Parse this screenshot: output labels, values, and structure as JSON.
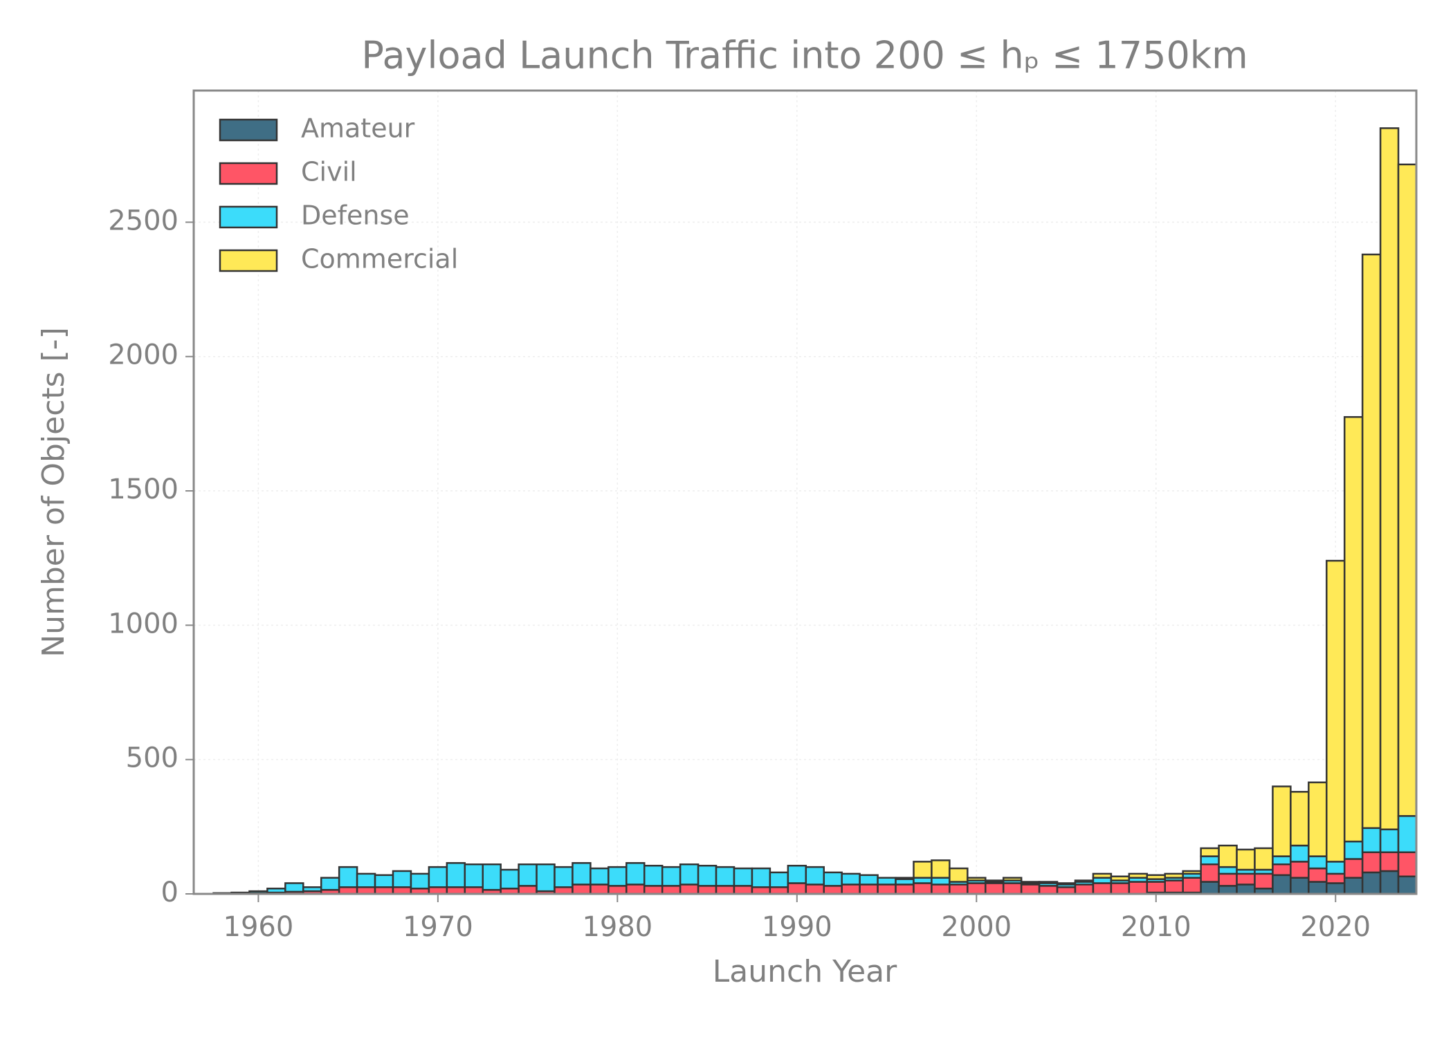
{
  "chart_data": {
    "type": "stacked_histogram",
    "title": "Payload Launch Traffic into 200 ≤ hₚ ≤ 1750km",
    "xlabel": "Launch Year",
    "ylabel": "Number of Objects [-]",
    "bins": [
      1957.5,
      1958.5,
      1959.5,
      1960.5,
      1961.5,
      1962.5,
      1963.5,
      1964.5,
      1965.5,
      1966.5,
      1967.5,
      1968.5,
      1969.5,
      1970.5,
      1971.5,
      1972.5,
      1973.5,
      1974.5,
      1975.5,
      1976.5,
      1977.5,
      1978.5,
      1979.5,
      1980.5,
      1981.5,
      1982.5,
      1983.5,
      1984.5,
      1985.5,
      1986.5,
      1987.5,
      1988.5,
      1989.5,
      1990.5,
      1991.5,
      1992.5,
      1993.5,
      1994.5,
      1995.5,
      1996.5,
      1997.5,
      1998.5,
      1999.5,
      2000.5,
      2001.5,
      2002.5,
      2003.5,
      2004.5,
      2005.5,
      2006.5,
      2007.5,
      2008.5,
      2009.5,
      2010.5,
      2011.5,
      2012.5,
      2013.5,
      2014.5,
      2015.5,
      2016.5,
      2017.5,
      2018.5,
      2019.5,
      2020.5,
      2021.5,
      2022.5,
      2023.5,
      2024.5
    ],
    "series": [
      {
        "name": "Amateur",
        "color": "#3f6e85",
        "values": [
          0,
          0,
          0,
          0,
          0,
          0,
          0,
          0,
          0,
          0,
          0,
          0,
          0,
          0,
          0,
          0,
          0,
          0,
          0,
          0,
          0,
          0,
          0,
          0,
          0,
          0,
          0,
          0,
          0,
          0,
          0,
          0,
          0,
          0,
          0,
          0,
          0,
          0,
          0,
          0,
          0,
          0,
          0,
          0,
          0,
          0,
          0,
          0,
          0,
          0,
          0,
          0,
          5,
          5,
          5,
          45,
          30,
          35,
          20,
          70,
          60,
          45,
          40,
          60,
          80,
          85,
          65
        ]
      },
      {
        "name": "Civil",
        "color": "#ff5566",
        "values": [
          0,
          0,
          3,
          5,
          8,
          10,
          15,
          25,
          25,
          25,
          25,
          20,
          25,
          25,
          25,
          15,
          20,
          30,
          10,
          25,
          35,
          35,
          30,
          35,
          30,
          30,
          35,
          30,
          30,
          30,
          25,
          25,
          40,
          35,
          30,
          35,
          35,
          35,
          35,
          40,
          35,
          35,
          40,
          40,
          40,
          35,
          30,
          25,
          35,
          40,
          40,
          45,
          40,
          45,
          55,
          65,
          45,
          40,
          55,
          40,
          60,
          50,
          35,
          70,
          75,
          70,
          90
        ]
      },
      {
        "name": "Defense",
        "color": "#3cdcfa",
        "values": [
          3,
          5,
          7,
          15,
          32,
          15,
          45,
          75,
          50,
          45,
          60,
          55,
          75,
          90,
          85,
          95,
          70,
          80,
          100,
          75,
          80,
          60,
          70,
          80,
          75,
          70,
          75,
          75,
          70,
          65,
          70,
          55,
          65,
          65,
          50,
          40,
          35,
          25,
          20,
          20,
          25,
          10,
          10,
          5,
          10,
          5,
          10,
          10,
          10,
          20,
          10,
          15,
          10,
          10,
          15,
          30,
          25,
          15,
          15,
          30,
          60,
          45,
          45,
          65,
          90,
          85,
          135
        ]
      },
      {
        "name": "Commercial",
        "color": "#ffe957",
        "values": [
          0,
          0,
          0,
          0,
          0,
          0,
          0,
          0,
          0,
          0,
          0,
          0,
          0,
          0,
          0,
          0,
          0,
          0,
          0,
          0,
          0,
          0,
          0,
          0,
          0,
          0,
          0,
          0,
          0,
          0,
          0,
          0,
          0,
          0,
          0,
          0,
          0,
          0,
          5,
          60,
          65,
          50,
          10,
          5,
          10,
          5,
          5,
          5,
          5,
          15,
          15,
          15,
          15,
          15,
          10,
          30,
          80,
          75,
          80,
          260,
          200,
          275,
          1120,
          1580,
          2135,
          2610,
          2425
        ]
      }
    ],
    "xlim": [
      1956.4,
      2024.5
    ],
    "xticks": [
      1960,
      1970,
      1980,
      1990,
      2000,
      2010,
      2020
    ],
    "ylim": [
      0,
      2990
    ],
    "yticks": [
      0,
      500,
      1000,
      1500,
      2000,
      2500
    ],
    "grid": true,
    "legend": "upper-left",
    "edgecolor": "#333333"
  }
}
